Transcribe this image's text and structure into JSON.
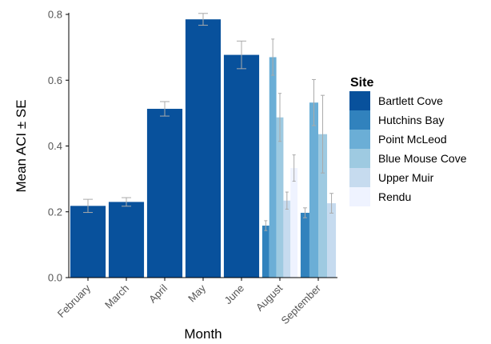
{
  "chart_data": {
    "type": "bar",
    "title": "",
    "xlabel": "Month",
    "ylabel": "Mean ACI ± SE",
    "ylim": [
      0,
      0.8
    ],
    "yticks": [
      "0.0",
      "0.2",
      "0.4",
      "0.6",
      "0.8"
    ],
    "grid": false,
    "legend": {
      "title": "Site",
      "placement": "right"
    },
    "categories": [
      "February",
      "March",
      "April",
      "May",
      "June",
      "August",
      "September"
    ],
    "series": [
      {
        "name": "Bartlett Cove",
        "color": "#08519c",
        "values": [
          0.218,
          0.23,
          0.513,
          0.785,
          0.677,
          null,
          null
        ],
        "se": [
          0.02,
          0.013,
          0.022,
          0.018,
          0.042,
          null,
          null
        ]
      },
      {
        "name": "Hutchins Bay",
        "color": "#3182bd",
        "values": [
          null,
          null,
          null,
          null,
          null,
          0.158,
          0.197
        ],
        "se": [
          null,
          null,
          null,
          null,
          null,
          0.015,
          0.015
        ]
      },
      {
        "name": "Point McLeod",
        "color": "#6baed6",
        "values": [
          null,
          null,
          null,
          null,
          null,
          0.67,
          0.532
        ],
        "se": [
          null,
          null,
          null,
          null,
          null,
          0.055,
          0.07
        ]
      },
      {
        "name": "Blue Mouse Cove",
        "color": "#9ecae1",
        "values": [
          null,
          null,
          null,
          null,
          null,
          0.487,
          0.436
        ],
        "se": [
          null,
          null,
          null,
          null,
          null,
          0.073,
          0.118
        ]
      },
      {
        "name": "Upper Muir",
        "color": "#c6dbef",
        "values": [
          null,
          null,
          null,
          null,
          null,
          0.234,
          0.226
        ],
        "se": [
          null,
          null,
          null,
          null,
          null,
          0.026,
          0.03
        ]
      },
      {
        "name": "Rendu",
        "color": "#eff3ff",
        "values": [
          null,
          null,
          null,
          null,
          null,
          0.333,
          null
        ],
        "se": [
          null,
          null,
          null,
          null,
          null,
          0.04,
          null
        ]
      }
    ],
    "error_bar_color": "#aaaaaa"
  }
}
